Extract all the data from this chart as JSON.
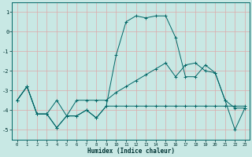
{
  "xlabel": "Humidex (Indice chaleur)",
  "xlim": [
    -0.5,
    23.5
  ],
  "ylim": [
    -5.5,
    1.5
  ],
  "yticks": [
    1,
    0,
    -1,
    -2,
    -3,
    -4,
    -5
  ],
  "xticks": [
    0,
    1,
    2,
    3,
    4,
    5,
    6,
    7,
    8,
    9,
    10,
    11,
    12,
    13,
    14,
    15,
    16,
    17,
    18,
    19,
    20,
    21,
    22,
    23
  ],
  "background_color": "#c8e8e4",
  "grid_color": "#ddaaaa",
  "line_color": "#006666",
  "curve1_x": [
    0,
    1,
    2,
    3,
    4,
    5,
    6,
    7,
    8,
    9,
    10,
    11,
    12,
    13,
    14,
    15,
    16,
    17,
    18,
    19,
    20,
    21,
    22,
    23
  ],
  "curve1_y": [
    -3.5,
    -2.8,
    -4.2,
    -4.2,
    -4.9,
    -4.3,
    -4.3,
    -4.0,
    -4.4,
    -3.8,
    -3.8,
    -3.8,
    -3.8,
    -3.8,
    -3.8,
    -3.8,
    -3.8,
    -3.8,
    -3.8,
    -3.8,
    -3.8,
    -3.8,
    -3.8,
    -3.8
  ],
  "curve2_x": [
    0,
    1,
    2,
    3,
    4,
    5,
    6,
    7,
    8,
    9,
    10,
    11,
    12,
    13,
    14,
    15,
    16,
    17,
    18,
    19,
    20,
    21,
    22,
    23
  ],
  "curve2_y": [
    -3.5,
    -2.8,
    -4.2,
    -4.2,
    -4.9,
    -4.3,
    -4.3,
    -4.0,
    -4.4,
    -3.8,
    -1.2,
    0.5,
    0.8,
    0.7,
    0.8,
    0.8,
    -0.3,
    -2.3,
    -2.3,
    -1.7,
    -2.1,
    -3.5,
    -5.0,
    -3.9
  ],
  "curve3_x": [
    0,
    1,
    2,
    3,
    4,
    5,
    6,
    7,
    8,
    9,
    10,
    11,
    12,
    13,
    14,
    15,
    16,
    17,
    18,
    19,
    20,
    21,
    22,
    23
  ],
  "curve3_y": [
    -3.5,
    -2.8,
    -4.2,
    -4.2,
    -3.5,
    -4.3,
    -3.5,
    -3.5,
    -3.5,
    -3.5,
    -3.1,
    -2.8,
    -2.5,
    -2.2,
    -1.9,
    -1.6,
    -2.3,
    -1.7,
    -1.6,
    -2.0,
    -2.1,
    -3.5,
    -3.9,
    -3.9
  ]
}
